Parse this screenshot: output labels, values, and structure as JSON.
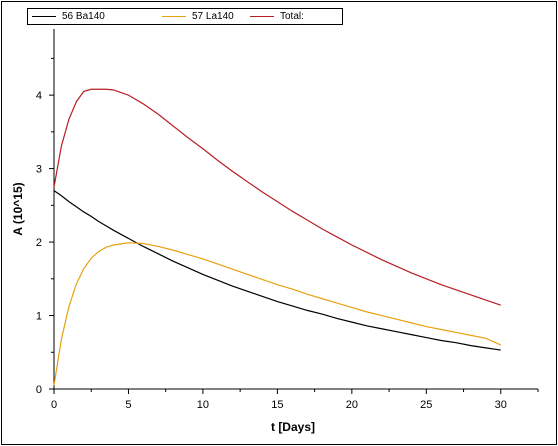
{
  "chart_data": {
    "type": "line",
    "title": "",
    "xlabel": "t [Days]",
    "ylabel": "A (10^15)",
    "xlim": [
      0,
      32.5
    ],
    "ylim": [
      0,
      4.9
    ],
    "xticks": [
      0,
      5,
      10,
      15,
      20,
      25,
      30
    ],
    "yticks": [
      0,
      1,
      2,
      3,
      4
    ],
    "grid": false,
    "legend_position": "top-left",
    "x": [
      0,
      0.5,
      1,
      1.5,
      2,
      2.5,
      3,
      3.5,
      4,
      5,
      6,
      7,
      8,
      9,
      10,
      11,
      12,
      13,
      14,
      15,
      16,
      17,
      18,
      19,
      20,
      21,
      22,
      23,
      24,
      25,
      26,
      27,
      28,
      29,
      30
    ],
    "series": [
      {
        "name": "56 Ba140",
        "color": "#000000",
        "values": [
          2.7,
          2.63,
          2.55,
          2.48,
          2.41,
          2.35,
          2.28,
          2.22,
          2.16,
          2.05,
          1.94,
          1.84,
          1.74,
          1.65,
          1.56,
          1.48,
          1.4,
          1.33,
          1.26,
          1.19,
          1.13,
          1.07,
          1.02,
          0.96,
          0.91,
          0.86,
          0.82,
          0.78,
          0.74,
          0.7,
          0.66,
          0.63,
          0.59,
          0.56,
          0.53
        ]
      },
      {
        "name": "57 La140",
        "color": "#e6a210",
        "values": [
          0.05,
          0.68,
          1.12,
          1.43,
          1.64,
          1.78,
          1.87,
          1.93,
          1.96,
          1.99,
          1.98,
          1.94,
          1.89,
          1.83,
          1.77,
          1.7,
          1.63,
          1.56,
          1.49,
          1.42,
          1.36,
          1.29,
          1.23,
          1.17,
          1.11,
          1.05,
          1.0,
          0.95,
          0.9,
          0.85,
          0.81,
          0.77,
          0.73,
          0.69,
          0.6
        ]
      },
      {
        "name": "Total:",
        "color": "#b81f24",
        "values": [
          2.75,
          3.31,
          3.67,
          3.91,
          4.05,
          4.08,
          4.08,
          4.08,
          4.07,
          4.0,
          3.88,
          3.74,
          3.58,
          3.42,
          3.27,
          3.11,
          2.96,
          2.82,
          2.68,
          2.55,
          2.42,
          2.3,
          2.18,
          2.07,
          1.96,
          1.86,
          1.76,
          1.67,
          1.58,
          1.5,
          1.42,
          1.35,
          1.28,
          1.21,
          1.14
        ]
      }
    ]
  }
}
